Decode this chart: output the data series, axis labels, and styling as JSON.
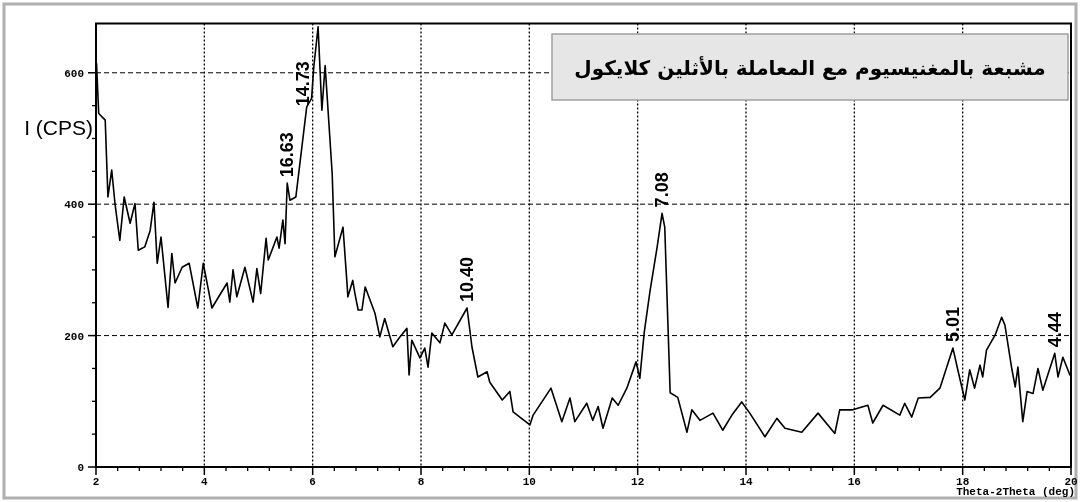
{
  "chart_data": {
    "type": "line",
    "title": "مشبعة بالمغنيسيوم مع المعاملة بالأثلين كلايكول",
    "xlabel": "Theta-2Theta (deg)",
    "ylabel": "I (CPS)",
    "color": "#000000",
    "line_style": "solid",
    "grid": true,
    "xlim": [
      2,
      20
    ],
    "ylim": [
      0,
      675
    ],
    "xticks": [
      2,
      4,
      6,
      8,
      10,
      12,
      14,
      16,
      18,
      20
    ],
    "yticks": [
      0,
      200,
      400,
      600
    ],
    "x": [
      2.01,
      2.05,
      2.17,
      2.22,
      2.29,
      2.35,
      2.44,
      2.52,
      2.63,
      2.72,
      2.78,
      2.9,
      3.0,
      3.07,
      3.13,
      3.2,
      3.33,
      3.4,
      3.46,
      3.59,
      3.72,
      3.88,
      3.98,
      4.14,
      4.42,
      4.47,
      4.53,
      4.6,
      4.75,
      4.9,
      4.97,
      5.04,
      5.14,
      5.18,
      5.34,
      5.38,
      5.45,
      5.49,
      5.53,
      5.58,
      5.69,
      5.89,
      5.98,
      6.02,
      6.1,
      6.17,
      6.23,
      6.36,
      6.41,
      6.56,
      6.63,
      6.65,
      6.74,
      6.78,
      6.84,
      6.91,
      6.97,
      7.15,
      7.24,
      7.33,
      7.48,
      7.61,
      7.74,
      7.78,
      7.83,
      7.98,
      8.07,
      8.13,
      8.2,
      8.35,
      8.44,
      8.57,
      8.85,
      8.94,
      9.05,
      9.22,
      9.27,
      9.5,
      9.64,
      9.7,
      10.01,
      10.07,
      10.4,
      10.6,
      10.75,
      10.84,
      11.06,
      11.17,
      11.27,
      11.36,
      11.53,
      11.64,
      11.8,
      11.97,
      12.04,
      12.12,
      12.23,
      12.36,
      12.45,
      12.5,
      12.6,
      12.74,
      12.91,
      13.0,
      13.15,
      13.39,
      13.57,
      13.74,
      13.92,
      14.07,
      14.35,
      14.57,
      14.72,
      15.03,
      15.33,
      15.64,
      15.73,
      15.97,
      16.25,
      16.34,
      16.53,
      16.84,
      16.93,
      17.06,
      17.18,
      17.4,
      17.58,
      17.82,
      17.91,
      18.04,
      18.13,
      18.22,
      18.32,
      18.37,
      18.44,
      18.6,
      18.72,
      18.78,
      18.91,
      18.97,
      19.02,
      19.11,
      19.19,
      19.3,
      19.39,
      19.48,
      19.7,
      19.76,
      19.85,
      19.98
    ],
    "values": [
      614,
      538,
      528,
      411,
      452,
      401,
      345,
      411,
      371,
      401,
      330,
      335,
      360,
      403,
      310,
      350,
      243,
      325,
      280,
      304,
      310,
      242,
      310,
      242,
      280,
      251,
      300,
      259,
      304,
      251,
      302,
      264,
      348,
      315,
      350,
      333,
      376,
      340,
      432,
      406,
      411,
      548,
      561,
      608,
      670,
      543,
      611,
      447,
      320,
      365,
      284,
      259,
      284,
      264,
      239,
      239,
      274,
      234,
      198,
      226,
      183,
      198,
      211,
      140,
      193,
      166,
      181,
      152,
      204,
      189,
      219,
      201,
      242,
      183,
      137,
      145,
      129,
      102,
      115,
      84,
      64,
      79,
      120,
      69,
      105,
      69,
      97,
      71,
      92,
      59,
      105,
      94,
      120,
      160,
      135,
      204,
      269,
      335,
      386,
      365,
      113,
      106,
      53,
      87,
      71,
      82,
      56,
      79,
      99,
      82,
      46,
      74,
      59,
      53,
      82,
      51,
      87,
      87,
      94,
      67,
      94,
      79,
      97,
      76,
      105,
      106,
      120,
      181,
      148,
      102,
      148,
      120,
      155,
      137,
      178,
      201,
      228,
      216,
      148,
      122,
      152,
      69,
      115,
      112,
      150,
      117,
      173,
      137,
      167,
      140
    ],
    "annotations": [
      {
        "text": "16.63",
        "x": 5.53,
        "y": 432
      },
      {
        "text": "14.73",
        "x": 5.82,
        "y": 540
      },
      {
        "text": "10.40",
        "x": 8.85,
        "y": 242
      },
      {
        "text": "7.08",
        "x": 12.45,
        "y": 386
      },
      {
        "text": "5.01",
        "x": 17.82,
        "y": 181
      },
      {
        "text": "4.44",
        "x": 19.7,
        "y": 173
      }
    ]
  }
}
